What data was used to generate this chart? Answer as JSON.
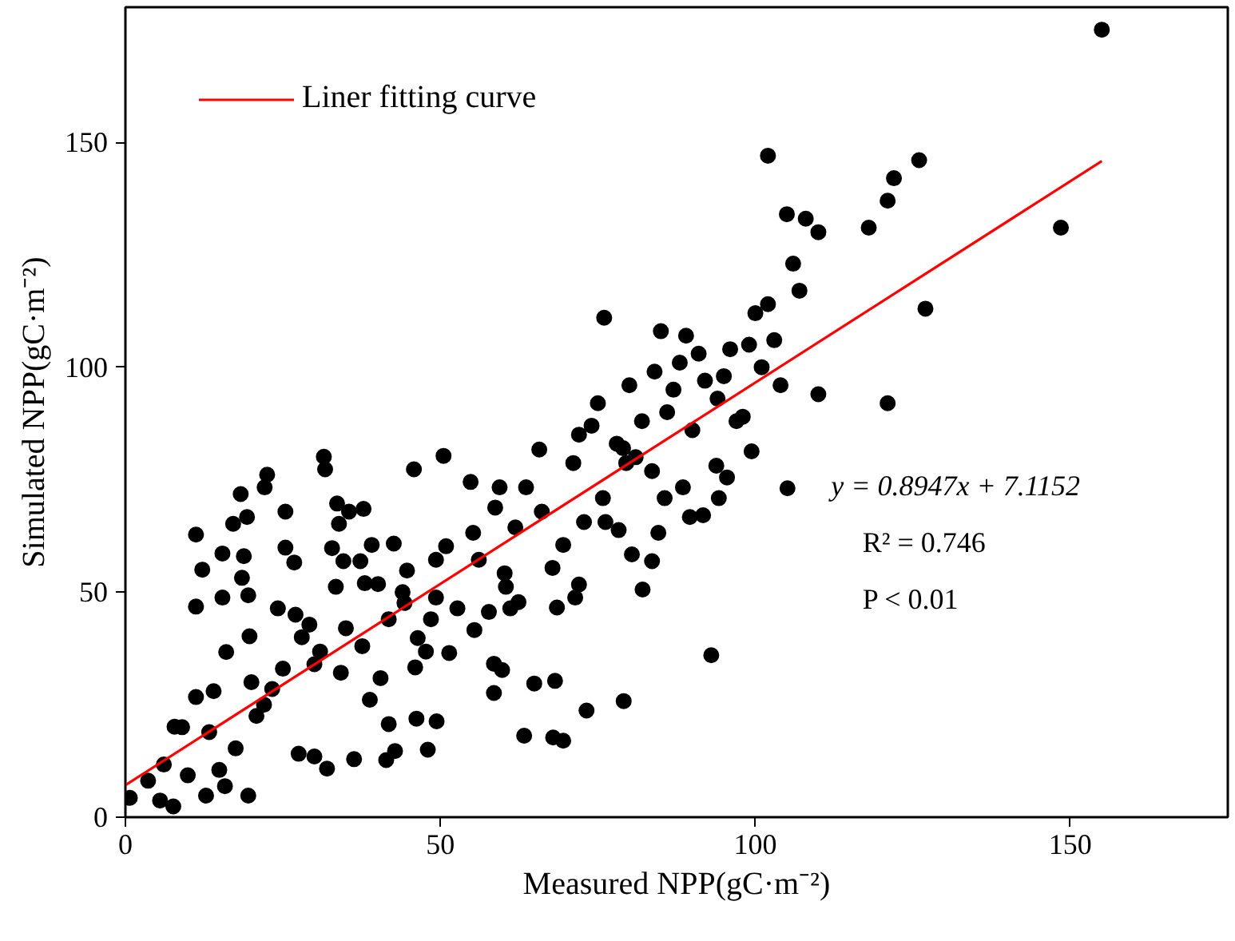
{
  "chart_data": {
    "type": "scatter",
    "xlabel": "Measured NPP(gC·m⁻²)",
    "ylabel": "Simulated NPP(gC·m⁻²)",
    "xlim": [
      0,
      175
    ],
    "ylim": [
      0,
      180
    ],
    "xticks": [
      0,
      50,
      100,
      150
    ],
    "yticks": [
      0,
      50,
      100,
      150
    ],
    "grid": false,
    "legend": "top left",
    "annotations": [
      "y = 0.8947x + 7.1152",
      "R² = 0.746",
      "P < 0.01"
    ],
    "series": [
      {
        "color": "#000000",
        "marker": "circle",
        "x": [
          0.7,
          5.5,
          7.6,
          3.6,
          6.1,
          7.8,
          11.2,
          11.2,
          11.2,
          12.2,
          15.4,
          15.4,
          16,
          17.1,
          18.3,
          22.5,
          22.1,
          19.3,
          18.8,
          18.5,
          19.5,
          19.7,
          12.8,
          19.5,
          15.8,
          17.5,
          13.3,
          9.9,
          14.9,
          20.8,
          23.3,
          24.2,
          25.4,
          25.4,
          26.8,
          27.5,
          30,
          32,
          31.5,
          31.7,
          33.6,
          33.9,
          32.8,
          34.6,
          33.4,
          29.2,
          30.9,
          34.2,
          37.6,
          35.5,
          37.8,
          37.3,
          39.1,
          40.1,
          42.6,
          45.8,
          50.5,
          41.8,
          40.5,
          38.8,
          36.3,
          41.4,
          42.8,
          41.8,
          46.2,
          49.4,
          46,
          47.7,
          46.4,
          48.5,
          49.3,
          44.7,
          44.3,
          49.3,
          50.9,
          51.4,
          52.7,
          55.4,
          54.8,
          55.2,
          56.1,
          57.7,
          58.7,
          59.4,
          60.2,
          60.4,
          58.5,
          59.8,
          58.5,
          62.4,
          61.1,
          63.3,
          64.9,
          67.9,
          69.5,
          68.2,
          73.2,
          79.1,
          68.5,
          71.4,
          72,
          67.8,
          69.5,
          66.1,
          61.9,
          63.6,
          65.7,
          72.8,
          76.2,
          75.8,
          78.3,
          80.4,
          82.1,
          83.6,
          84.6,
          85.6,
          83.6,
          88.5,
          89.6,
          91.7,
          93.8,
          95.5,
          94.2,
          99.4,
          105.1,
          79.5,
          71.1,
          155,
          148.5,
          121,
          127,
          102,
          126,
          122,
          121,
          118,
          105,
          108,
          110,
          106,
          107,
          110,
          72,
          75,
          78,
          80,
          82,
          84,
          86,
          88,
          90,
          92,
          94,
          96,
          98,
          100,
          101,
          103,
          76,
          79,
          85,
          87,
          91,
          95,
          97,
          99,
          102,
          104,
          74,
          81,
          89,
          93,
          20,
          25,
          28,
          35,
          38,
          44,
          48,
          9,
          14,
          22,
          27,
          30
        ],
        "values": [
          4.3,
          3.7,
          2.4,
          8.1,
          11.7,
          20.1,
          26.7,
          46.8,
          62.8,
          55,
          58.6,
          48.8,
          36.7,
          65.2,
          71.8,
          76.1,
          73.3,
          66.7,
          58,
          53.2,
          49.3,
          40.2,
          4.8,
          4.8,
          6.9,
          15.3,
          18.9,
          9.3,
          10.5,
          22.5,
          28.5,
          46.4,
          67.9,
          59.9,
          56.6,
          14.1,
          13.5,
          10.8,
          80.1,
          77.3,
          69.7,
          65.2,
          59.8,
          56.9,
          51.2,
          42.8,
          36.8,
          32.1,
          38,
          67.9,
          68.5,
          56.9,
          60.5,
          51.8,
          60.8,
          77.3,
          80.3,
          44,
          30.9,
          26.1,
          12.9,
          12.7,
          14.7,
          20.7,
          21.9,
          21.3,
          33.3,
          36.8,
          39.8,
          44,
          48.8,
          54.8,
          47.6,
          57.2,
          60.2,
          36.5,
          46.4,
          41.6,
          74.5,
          63.2,
          57.2,
          45.6,
          68.8,
          73.3,
          54.2,
          51.2,
          34.1,
          32.7,
          27.6,
          47.8,
          46.4,
          18.1,
          29.7,
          17.7,
          17,
          30.3,
          23.7,
          25.8,
          46.6,
          48.8,
          51.7,
          55.4,
          60.5,
          67.9,
          64.4,
          73.3,
          81.7,
          65.6,
          65.6,
          70.9,
          63.8,
          58.4,
          50.6,
          56.9,
          63.2,
          70.9,
          76.9,
          73.3,
          66.7,
          67.1,
          78.1,
          75.5,
          70.9,
          81.3,
          73.1,
          78.7,
          78.7,
          175,
          131,
          92,
          113,
          147,
          146,
          142,
          137,
          131,
          134,
          133,
          130,
          123,
          117,
          94,
          85,
          92,
          83,
          96,
          88,
          99,
          90,
          101,
          86,
          97,
          93,
          104,
          89,
          112,
          100,
          106,
          111,
          82,
          108,
          95,
          103,
          98,
          88,
          105,
          114,
          96,
          87,
          80,
          107,
          36,
          30,
          33,
          40,
          42,
          52,
          50,
          15,
          20,
          28,
          25,
          45,
          34
        ]
      },
      {
        "type": "line",
        "name": "Liner fitting curve",
        "color": "#ff0000",
        "marker": "none",
        "x": [
          0,
          155
        ],
        "values": [
          7.1,
          145.8
        ]
      }
    ]
  }
}
